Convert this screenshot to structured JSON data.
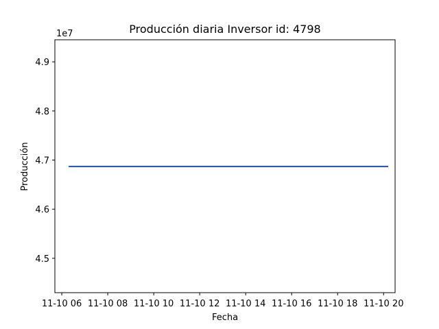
{
  "chart_data": {
    "type": "line",
    "title": "Producción diaria Inversor id: 4798",
    "xlabel": "Fecha",
    "ylabel": "Producción",
    "offset_label": "1e7",
    "x_ticks": [
      "11-10 06",
      "11-10 08",
      "11-10 10",
      "11-10 12",
      "11-10 14",
      "11-10 16",
      "11-10 18",
      "11-10 20"
    ],
    "x_tick_hours": [
      6,
      8,
      10,
      12,
      14,
      16,
      18,
      20
    ],
    "xlim_hours": [
      5.7,
      20.5
    ],
    "y_ticks": [
      "4.5",
      "4.6",
      "4.7",
      "4.8",
      "4.9"
    ],
    "y_tick_values": [
      4.5,
      4.6,
      4.7,
      4.8,
      4.9
    ],
    "ylim": [
      4.43,
      4.945
    ],
    "grid": false,
    "series": [
      {
        "color": "#1f4fa8",
        "x_hours": [
          6.3,
          20.2
        ],
        "values": [
          4.687,
          4.687
        ]
      }
    ]
  }
}
